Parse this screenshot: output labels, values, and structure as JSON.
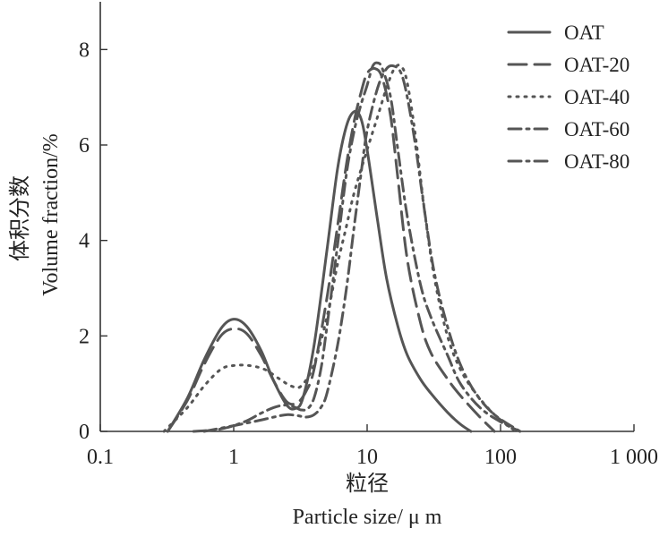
{
  "chart_data": {
    "type": "line",
    "x_scale": "log",
    "xlim": [
      0.1,
      1000
    ],
    "ylim": [
      0,
      9
    ],
    "x_ticks": [
      0.1,
      1,
      10,
      100,
      1000
    ],
    "x_tick_labels": [
      "0.1",
      "1",
      "10",
      "100",
      "1 000"
    ],
    "y_ticks": [
      0,
      2,
      4,
      6,
      8
    ],
    "y_tick_labels": [
      "0",
      "2",
      "4",
      "6",
      "8"
    ],
    "xlabel_cn": "粒径",
    "xlabel": "Particle size/ μ m",
    "ylabel_cn": "体积分数",
    "ylabel": "Volume fraction/%",
    "grid": false,
    "legend_position": "top-right",
    "line_color": "#555555",
    "series": [
      {
        "name": "OAT",
        "dash": "solid",
        "points": [
          [
            0.32,
            0
          ],
          [
            0.45,
            0.7
          ],
          [
            0.6,
            1.5
          ],
          [
            0.8,
            2.15
          ],
          [
            1.0,
            2.35
          ],
          [
            1.25,
            2.2
          ],
          [
            1.6,
            1.7
          ],
          [
            2.0,
            1.05
          ],
          [
            2.5,
            0.55
          ],
          [
            2.9,
            0.48
          ],
          [
            3.3,
            0.7
          ],
          [
            4.0,
            1.8
          ],
          [
            5.0,
            3.8
          ],
          [
            6.0,
            5.5
          ],
          [
            7.0,
            6.4
          ],
          [
            8.0,
            6.7
          ],
          [
            9.0,
            6.55
          ],
          [
            10.0,
            5.9
          ],
          [
            12.0,
            4.4
          ],
          [
            14.0,
            3.2
          ],
          [
            17.0,
            2.2
          ],
          [
            20.0,
            1.6
          ],
          [
            25.0,
            1.1
          ],
          [
            30.0,
            0.8
          ],
          [
            40.0,
            0.4
          ],
          [
            50.0,
            0.15
          ],
          [
            60.0,
            0
          ]
        ]
      },
      {
        "name": "OAT-20",
        "dash": "long-dash",
        "points": [
          [
            0.32,
            0
          ],
          [
            0.45,
            0.65
          ],
          [
            0.6,
            1.4
          ],
          [
            0.8,
            2.0
          ],
          [
            1.0,
            2.15
          ],
          [
            1.25,
            2.05
          ],
          [
            1.6,
            1.6
          ],
          [
            2.0,
            1.05
          ],
          [
            2.5,
            0.62
          ],
          [
            3.0,
            0.6
          ],
          [
            3.5,
            0.85
          ],
          [
            4.0,
            1.3
          ],
          [
            5.0,
            2.8
          ],
          [
            6.0,
            4.3
          ],
          [
            7.0,
            5.6
          ],
          [
            8.0,
            6.5
          ],
          [
            9.0,
            7.1
          ],
          [
            10.0,
            7.5
          ],
          [
            11.5,
            7.6
          ],
          [
            13.0,
            7.4
          ],
          [
            15.0,
            6.6
          ],
          [
            17.0,
            5.3
          ],
          [
            20.0,
            3.6
          ],
          [
            25.0,
            2.3
          ],
          [
            30.0,
            1.65
          ],
          [
            40.0,
            1.1
          ],
          [
            50.0,
            0.75
          ],
          [
            70.0,
            0.3
          ],
          [
            90.0,
            0
          ]
        ]
      },
      {
        "name": "OAT-40",
        "dash": "dotted",
        "points": [
          [
            0.3,
            0
          ],
          [
            0.45,
            0.5
          ],
          [
            0.6,
            0.95
          ],
          [
            0.8,
            1.3
          ],
          [
            1.0,
            1.38
          ],
          [
            1.3,
            1.38
          ],
          [
            1.7,
            1.3
          ],
          [
            2.2,
            1.1
          ],
          [
            2.7,
            0.95
          ],
          [
            3.2,
            0.95
          ],
          [
            4.0,
            1.4
          ],
          [
            5.0,
            2.4
          ],
          [
            6.0,
            3.5
          ],
          [
            7.0,
            4.3
          ],
          [
            8.0,
            5.0
          ],
          [
            10.0,
            5.9
          ],
          [
            12.0,
            6.6
          ],
          [
            14.0,
            7.2
          ],
          [
            16.0,
            7.6
          ],
          [
            18.0,
            7.65
          ],
          [
            20.0,
            7.3
          ],
          [
            23.0,
            6.2
          ],
          [
            27.0,
            4.6
          ],
          [
            32.0,
            3.2
          ],
          [
            40.0,
            2.0
          ],
          [
            50.0,
            1.3
          ],
          [
            65.0,
            0.8
          ],
          [
            90.0,
            0.35
          ],
          [
            130.0,
            0
          ]
        ]
      },
      {
        "name": "OAT-60",
        "dash": "dash-dot",
        "points": [
          [
            0.5,
            0
          ],
          [
            0.8,
            0.05
          ],
          [
            1.2,
            0.2
          ],
          [
            1.6,
            0.38
          ],
          [
            2.0,
            0.5
          ],
          [
            2.4,
            0.55
          ],
          [
            2.8,
            0.52
          ],
          [
            3.2,
            0.45
          ],
          [
            3.6,
            0.48
          ],
          [
            4.0,
            0.7
          ],
          [
            4.5,
            1.3
          ],
          [
            5.0,
            2.2
          ],
          [
            6.0,
            3.9
          ],
          [
            7.0,
            5.4
          ],
          [
            8.0,
            6.3
          ],
          [
            9.0,
            6.85
          ],
          [
            10.0,
            7.25
          ],
          [
            11.0,
            7.65
          ],
          [
            12.0,
            7.72
          ],
          [
            13.0,
            7.6
          ],
          [
            15.0,
            7.0
          ],
          [
            17.0,
            5.9
          ],
          [
            20.0,
            4.5
          ],
          [
            25.0,
            3.1
          ],
          [
            30.0,
            2.4
          ],
          [
            40.0,
            1.6
          ],
          [
            50.0,
            1.0
          ],
          [
            70.0,
            0.5
          ],
          [
            100.0,
            0.2
          ],
          [
            140.0,
            0
          ]
        ]
      },
      {
        "name": "OAT-80",
        "dash": "dash-dot",
        "points": [
          [
            0.6,
            0
          ],
          [
            1.0,
            0.12
          ],
          [
            1.5,
            0.22
          ],
          [
            2.0,
            0.3
          ],
          [
            2.5,
            0.35
          ],
          [
            3.0,
            0.33
          ],
          [
            3.5,
            0.3
          ],
          [
            4.0,
            0.35
          ],
          [
            4.5,
            0.5
          ],
          [
            5.0,
            0.8
          ],
          [
            6.0,
            1.8
          ],
          [
            7.0,
            3.0
          ],
          [
            8.0,
            4.3
          ],
          [
            9.0,
            5.4
          ],
          [
            10.0,
            6.3
          ],
          [
            12.0,
            7.2
          ],
          [
            14.0,
            7.6
          ],
          [
            16.0,
            7.65
          ],
          [
            18.0,
            7.5
          ],
          [
            20.0,
            7.0
          ],
          [
            23.0,
            6.0
          ],
          [
            27.0,
            4.6
          ],
          [
            32.0,
            3.3
          ],
          [
            40.0,
            2.2
          ],
          [
            50.0,
            1.4
          ],
          [
            65.0,
            0.8
          ],
          [
            90.0,
            0.35
          ],
          [
            140.0,
            0
          ]
        ]
      }
    ]
  }
}
